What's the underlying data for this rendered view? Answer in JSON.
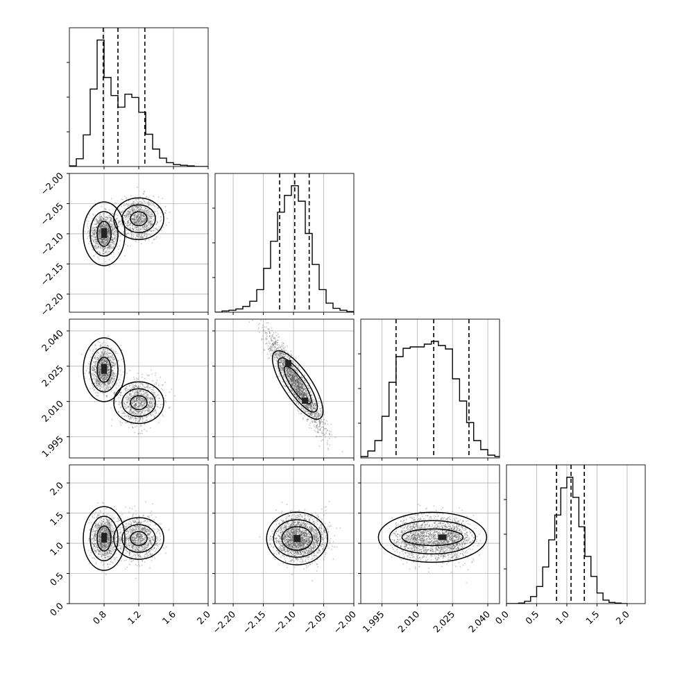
{
  "chart_data": {
    "type": "corner",
    "parameters": 4,
    "grid": true,
    "colors": {
      "axis": "#000000",
      "grid": "#b0b0b0",
      "ink": "#000000",
      "points": "#555555"
    },
    "axes_ranges": {
      "p0": [
        0.4,
        2.0
      ],
      "p1": [
        -2.23,
        -2.0
      ],
      "p2": [
        1.986,
        2.045
      ],
      "p3": [
        0.0,
        2.3
      ]
    },
    "tick_labels": {
      "p0": [
        "0.8",
        "1.2",
        "1.6",
        "2.0"
      ],
      "p1": [
        "−2.20",
        "−2.15",
        "−2.10",
        "−2.05",
        "−2.00"
      ],
      "p2": [
        "1.995",
        "2.010",
        "2.025",
        "2.040"
      ],
      "p3": [
        "0.0",
        "0.5",
        "1.0",
        "1.5",
        "2.0"
      ]
    },
    "tick_values": {
      "p0": [
        0.8,
        1.2,
        1.6,
        2.0
      ],
      "p1": [
        -2.2,
        -2.15,
        -2.1,
        -2.05,
        -2.0
      ],
      "p2": [
        1.995,
        2.01,
        2.025,
        2.04
      ],
      "p3": [
        0.0,
        0.5,
        1.0,
        1.5,
        2.0
      ]
    },
    "quantiles": {
      "p0": [
        0.79,
        0.96,
        1.27
      ],
      "p1": [
        -2.123,
        -2.098,
        -2.074
      ],
      "p2": [
        2.001,
        2.017,
        2.032
      ],
      "p3": [
        0.83,
        1.07,
        1.29
      ]
    },
    "histograms": {
      "p0": {
        "bin_edges": [
          0.4,
          0.48,
          0.56,
          0.64,
          0.72,
          0.8,
          0.88,
          0.96,
          1.04,
          1.12,
          1.2,
          1.28,
          1.36,
          1.44,
          1.52,
          1.6,
          1.68,
          1.76,
          1.84,
          1.92,
          2.0
        ],
        "counts": [
          1,
          12,
          49,
          120,
          196,
          138,
          110,
          92,
          112,
          107,
          84,
          50,
          27,
          13,
          6,
          3,
          2,
          1,
          0,
          0
        ],
        "ymax": 215
      },
      "p1": {
        "bin_edges": [
          -2.23,
          -2.2185,
          -2.207,
          -2.1955,
          -2.184,
          -2.1725,
          -2.161,
          -2.1495,
          -2.138,
          -2.1265,
          -2.115,
          -2.1035,
          -2.092,
          -2.0805,
          -2.069,
          -2.0575,
          -2.046,
          -2.0345,
          -2.023,
          -2.0115,
          -2.0
        ],
        "counts": [
          0,
          2,
          3,
          5,
          9,
          17,
          35,
          68,
          110,
          155,
          181,
          196,
          172,
          122,
          74,
          35,
          14,
          6,
          3,
          1
        ],
        "ymax": 215
      },
      "p2": {
        "bin_edges": [
          1.986,
          1.989,
          1.992,
          1.995,
          1.998,
          2.001,
          2.004,
          2.007,
          2.01,
          2.013,
          2.016,
          2.019,
          2.022,
          2.025,
          2.028,
          2.031,
          2.034,
          2.037,
          2.04,
          2.043,
          2.046
        ],
        "counts": [
          2,
          10,
          25,
          60,
          109,
          146,
          158,
          160,
          160,
          164,
          168,
          162,
          157,
          114,
          82,
          51,
          25,
          12,
          4,
          2
        ],
        "ymax": 200
      },
      "p3": {
        "bin_edges": [
          0.0,
          0.1,
          0.2,
          0.3,
          0.4,
          0.5,
          0.6,
          0.7,
          0.8,
          0.9,
          1.0,
          1.1,
          1.2,
          1.3,
          1.4,
          1.5,
          1.6,
          1.7,
          1.8,
          1.9,
          2.0
        ],
        "counts": [
          0,
          0,
          1,
          4,
          12,
          29,
          62,
          108,
          150,
          196,
          214,
          180,
          130,
          80,
          46,
          18,
          6,
          2,
          1,
          0
        ],
        "ymax": 235
      }
    },
    "modes": [
      {
        "p0": 0.8,
        "p1": -2.1,
        "p2": 2.0235,
        "p3": 1.08,
        "sx": 0.07,
        "sy1": 0.015,
        "sy2": 0.0045,
        "sy3": 0.18,
        "weight": 0.55
      },
      {
        "p0": 1.2,
        "p1": -2.075,
        "p2": 2.0095,
        "p3": 1.08,
        "sx": 0.11,
        "sy1": 0.017,
        "sy2": 0.0045,
        "sy3": 0.18,
        "weight": 0.45
      }
    ]
  }
}
